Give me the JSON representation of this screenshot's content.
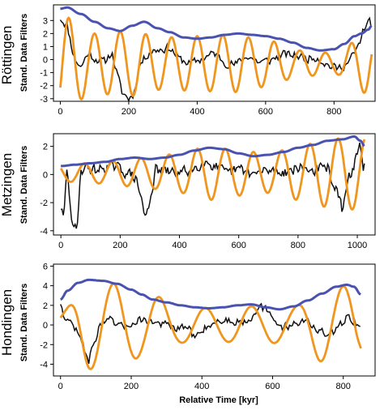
{
  "chart_data": [
    {
      "type": "line",
      "site": "Röttingen",
      "ylabel": "Stand. Data Filters",
      "xlabel": "",
      "xlim": [
        -20,
        920
      ],
      "ylim": [
        -3.2,
        4.2
      ],
      "xticks": [
        0,
        200,
        400,
        600,
        800
      ],
      "yticks": [
        -3,
        -2,
        -1,
        0,
        1,
        2,
        3
      ],
      "envelope": [
        [
          0,
          3.9
        ],
        [
          20,
          4.0
        ],
        [
          60,
          3.5
        ],
        [
          100,
          2.9
        ],
        [
          140,
          2.4
        ],
        [
          175,
          2.2
        ],
        [
          210,
          2.6
        ],
        [
          245,
          2.9
        ],
        [
          285,
          2.4
        ],
        [
          320,
          2.1
        ],
        [
          360,
          1.7
        ],
        [
          400,
          1.6
        ],
        [
          440,
          1.7
        ],
        [
          480,
          1.9
        ],
        [
          520,
          2.0
        ],
        [
          560,
          1.9
        ],
        [
          600,
          1.8
        ],
        [
          640,
          1.6
        ],
        [
          680,
          1.3
        ],
        [
          720,
          0.9
        ],
        [
          760,
          0.7
        ],
        [
          800,
          0.8
        ],
        [
          830,
          1.2
        ],
        [
          860,
          1.8
        ],
        [
          880,
          2.0
        ],
        [
          900,
          2.3
        ],
        [
          910,
          2.6
        ]
      ],
      "filter": {
        "mean": -0.3,
        "amps": [
          [
            0,
            3.7
          ],
          [
            100,
            2.3
          ],
          [
            200,
            2.5
          ],
          [
            300,
            2.0
          ],
          [
            400,
            2.1
          ],
          [
            500,
            2.2
          ],
          [
            600,
            1.8
          ],
          [
            700,
            1.0
          ],
          [
            800,
            0.8
          ],
          [
            900,
            2.3
          ]
        ],
        "period": 75,
        "phase_x": 25
      },
      "data": {
        "baseline": [
          [
            0,
            3.2
          ],
          [
            20,
            2.6
          ],
          [
            40,
            0.2
          ],
          [
            60,
            -0.6
          ],
          [
            80,
            0.5
          ],
          [
            100,
            0.1
          ],
          [
            130,
            -0.2
          ],
          [
            150,
            0.6
          ],
          [
            165,
            -1.0
          ],
          [
            180,
            -2.5
          ],
          [
            200,
            -3.0
          ],
          [
            215,
            -2.6
          ],
          [
            230,
            -0.5
          ],
          [
            260,
            0.6
          ],
          [
            290,
            0.8
          ],
          [
            320,
            0.9
          ],
          [
            350,
            0.0
          ],
          [
            380,
            -0.3
          ],
          [
            410,
            0.0
          ],
          [
            450,
            0.5
          ],
          [
            480,
            -0.2
          ],
          [
            510,
            -0.4
          ],
          [
            550,
            0.3
          ],
          [
            580,
            -0.2
          ],
          [
            610,
            -0.1
          ],
          [
            650,
            0.4
          ],
          [
            690,
            0.3
          ],
          [
            720,
            0.1
          ],
          [
            750,
            0.2
          ],
          [
            780,
            -0.4
          ],
          [
            810,
            -0.7
          ],
          [
            840,
            -0.3
          ],
          [
            870,
            0.9
          ],
          [
            890,
            2.6
          ],
          [
            905,
            2.9
          ],
          [
            915,
            1.7
          ]
        ],
        "noise": 0.45,
        "step": 4,
        "seed": 11
      }
    },
    {
      "type": "line",
      "site": "Metzingen",
      "ylabel": "Stand. Data Filters",
      "xlabel": "",
      "xlim": [
        -25,
        1060
      ],
      "ylim": [
        -4.3,
        2.9
      ],
      "xticks": [
        0,
        200,
        400,
        600,
        800,
        1000
      ],
      "yticks": [
        -4,
        -2,
        0,
        2
      ],
      "envelope": [
        [
          0,
          0.6
        ],
        [
          50,
          0.7
        ],
        [
          100,
          0.8
        ],
        [
          150,
          0.9
        ],
        [
          200,
          1.1
        ],
        [
          250,
          1.2
        ],
        [
          300,
          1.1
        ],
        [
          350,
          1.2
        ],
        [
          400,
          1.4
        ],
        [
          450,
          1.7
        ],
        [
          500,
          1.9
        ],
        [
          550,
          1.8
        ],
        [
          600,
          1.5
        ],
        [
          650,
          1.3
        ],
        [
          700,
          1.4
        ],
        [
          750,
          1.6
        ],
        [
          800,
          1.9
        ],
        [
          850,
          2.1
        ],
        [
          900,
          2.4
        ],
        [
          950,
          2.5
        ],
        [
          990,
          2.7
        ],
        [
          1010,
          2.4
        ],
        [
          1025,
          2.0
        ]
      ],
      "filter": {
        "mean": 0.1,
        "amps": [
          [
            0,
            0.6
          ],
          [
            100,
            0.7
          ],
          [
            200,
            0.9
          ],
          [
            300,
            1.1
          ],
          [
            400,
            1.4
          ],
          [
            500,
            1.9
          ],
          [
            600,
            1.6
          ],
          [
            700,
            1.4
          ],
          [
            800,
            1.9
          ],
          [
            900,
            2.4
          ],
          [
            1000,
            2.6
          ]
        ],
        "period": 95,
        "phase_x": 80
      },
      "data": {
        "baseline": [
          [
            0,
            -2.3
          ],
          [
            10,
            -3.3
          ],
          [
            20,
            0.4
          ],
          [
            40,
            -3.8
          ],
          [
            55,
            -4.0
          ],
          [
            65,
            0.2
          ],
          [
            80,
            0.5
          ],
          [
            120,
            0.3
          ],
          [
            160,
            0.6
          ],
          [
            200,
            0.4
          ],
          [
            250,
            -0.2
          ],
          [
            270,
            -1.5
          ],
          [
            285,
            -3.2
          ],
          [
            300,
            -1.8
          ],
          [
            320,
            0.3
          ],
          [
            360,
            0.2
          ],
          [
            400,
            0.1
          ],
          [
            450,
            0.4
          ],
          [
            480,
            1.0
          ],
          [
            520,
            0.6
          ],
          [
            560,
            0.0
          ],
          [
            600,
            0.4
          ],
          [
            650,
            0.0
          ],
          [
            700,
            0.3
          ],
          [
            760,
            0.2
          ],
          [
            800,
            0.5
          ],
          [
            850,
            0.3
          ],
          [
            900,
            0.5
          ],
          [
            930,
            -1.2
          ],
          [
            950,
            -2.6
          ],
          [
            970,
            -0.4
          ],
          [
            990,
            0.8
          ],
          [
            1010,
            2.2
          ],
          [
            1020,
            0.6
          ]
        ],
        "noise": 0.55,
        "step": 4,
        "seed": 29
      }
    },
    {
      "type": "line",
      "site": "Hondingen",
      "ylabel": "Stand. Data Filters",
      "xlabel": "Relative Time [kyr]",
      "xlim": [
        -20,
        890
      ],
      "ylim": [
        -5.2,
        6.2
      ],
      "xticks": [
        0,
        200,
        400,
        600,
        800
      ],
      "yticks": [
        -4,
        -2,
        0,
        2,
        4,
        6
      ],
      "envelope": [
        [
          0,
          2.6
        ],
        [
          20,
          3.5
        ],
        [
          50,
          4.3
        ],
        [
          80,
          4.6
        ],
        [
          120,
          4.5
        ],
        [
          160,
          4.2
        ],
        [
          200,
          3.6
        ],
        [
          230,
          3.1
        ],
        [
          260,
          2.6
        ],
        [
          300,
          2.3
        ],
        [
          340,
          2.0
        ],
        [
          380,
          1.8
        ],
        [
          420,
          1.7
        ],
        [
          460,
          1.8
        ],
        [
          500,
          2.0
        ],
        [
          540,
          2.1
        ],
        [
          580,
          1.8
        ],
        [
          620,
          1.6
        ],
        [
          660,
          1.9
        ],
        [
          700,
          2.5
        ],
        [
          740,
          3.2
        ],
        [
          780,
          3.9
        ],
        [
          810,
          4.1
        ],
        [
          830,
          3.9
        ],
        [
          850,
          3.1
        ]
      ],
      "filter": {
        "mean": 0.0,
        "amps": [
          [
            0,
            1.3
          ],
          [
            80,
            4.5
          ],
          [
            150,
            4.2
          ],
          [
            250,
            3.1
          ],
          [
            350,
            1.8
          ],
          [
            450,
            1.7
          ],
          [
            550,
            1.9
          ],
          [
            650,
            1.8
          ],
          [
            750,
            3.8
          ],
          [
            830,
            4.0
          ],
          [
            850,
            3.2
          ]
        ],
        "period": 130,
        "phase_x": 150
      },
      "data": {
        "baseline": [
          [
            0,
            2.3
          ],
          [
            15,
            0.4
          ],
          [
            35,
            0.2
          ],
          [
            50,
            -1.0
          ],
          [
            65,
            -2.2
          ],
          [
            80,
            -3.5
          ],
          [
            95,
            -2.0
          ],
          [
            110,
            0.1
          ],
          [
            140,
            0.4
          ],
          [
            170,
            -0.3
          ],
          [
            200,
            0.2
          ],
          [
            230,
            0.6
          ],
          [
            260,
            0.3
          ],
          [
            300,
            0.0
          ],
          [
            330,
            -0.5
          ],
          [
            360,
            -0.2
          ],
          [
            380,
            -1.4
          ],
          [
            400,
            -0.4
          ],
          [
            430,
            0.2
          ],
          [
            470,
            0.5
          ],
          [
            510,
            0.3
          ],
          [
            540,
            0.8
          ],
          [
            560,
            2.0
          ],
          [
            580,
            1.5
          ],
          [
            600,
            0.6
          ],
          [
            630,
            -0.3
          ],
          [
            660,
            0.2
          ],
          [
            700,
            0.4
          ],
          [
            730,
            -0.6
          ],
          [
            760,
            -1.2
          ],
          [
            790,
            -0.2
          ],
          [
            810,
            1.0
          ],
          [
            830,
            0.4
          ],
          [
            850,
            -0.2
          ]
        ],
        "noise": 0.6,
        "step": 4,
        "seed": 47
      }
    }
  ],
  "colors": {
    "envelope": "#4a52b0",
    "filter": "#f0961e",
    "data": "#111111",
    "frame": "#000000"
  }
}
